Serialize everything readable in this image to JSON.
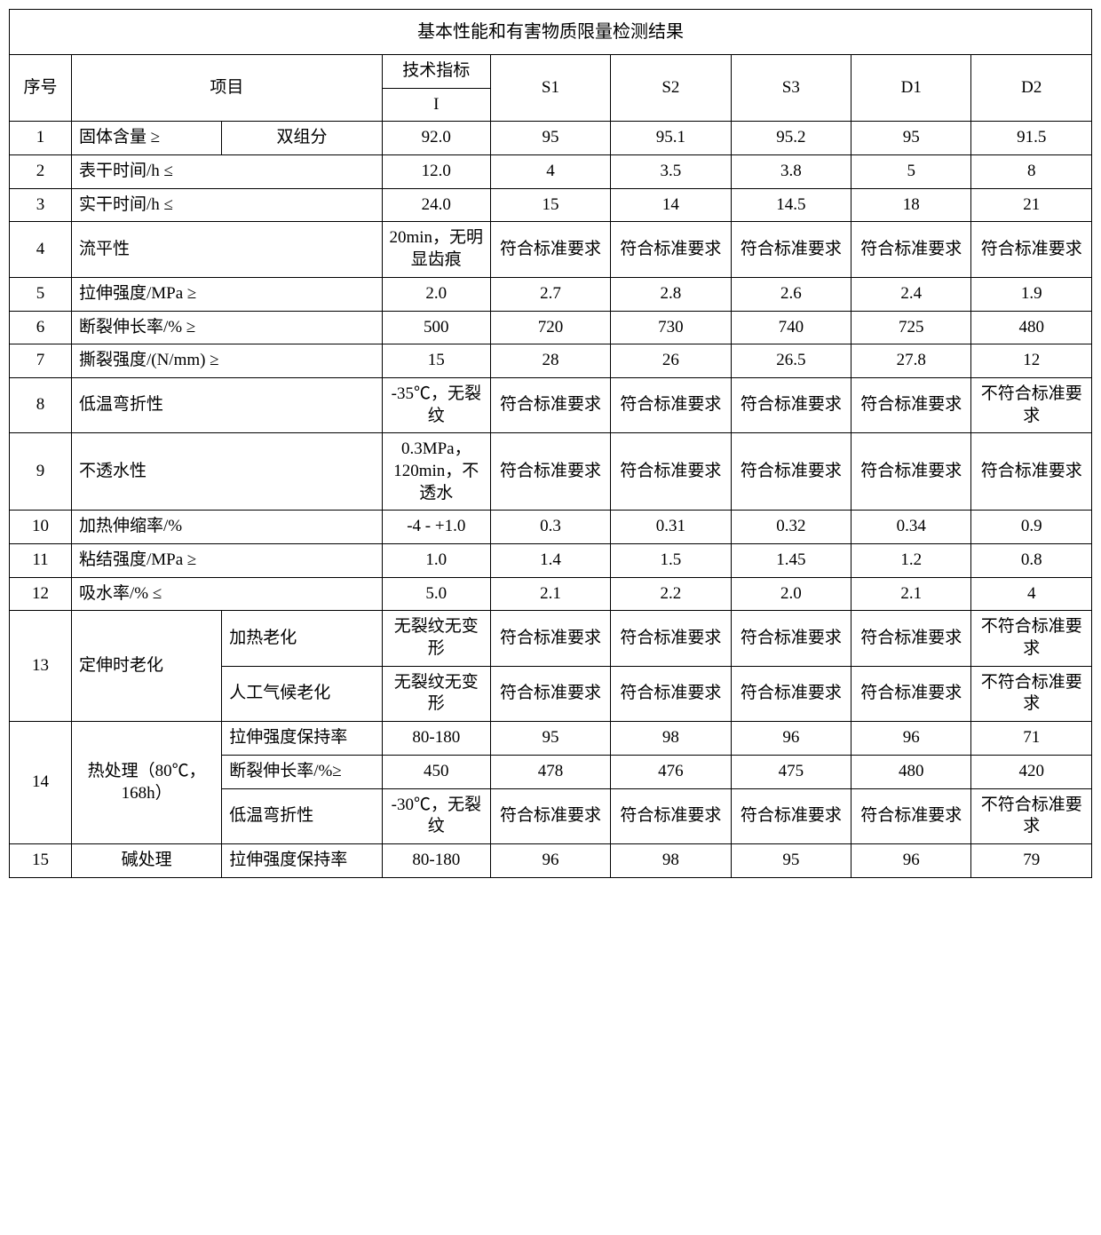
{
  "title": "基本性能和有害物质限量检测结果",
  "header": {
    "seq": "序号",
    "item": "项目",
    "spec": "技术指标",
    "spec_sub": "I",
    "s1": "S1",
    "s2": "S2",
    "s3": "S3",
    "d1": "D1",
    "d2": "D2"
  },
  "rows": [
    {
      "seq": "1",
      "item_a": "固体含量  ≥",
      "item_b": "双组分",
      "spec": "92.0",
      "s1": "95",
      "s2": "95.1",
      "s3": "95.2",
      "d1": "95",
      "d2": "91.5"
    },
    {
      "seq": "2",
      "item": "表干时间/h   ≤",
      "spec": "12.0",
      "s1": "4",
      "s2": "3.5",
      "s3": "3.8",
      "d1": "5",
      "d2": "8"
    },
    {
      "seq": "3",
      "item": "实干时间/h   ≤",
      "spec": "24.0",
      "s1": "15",
      "s2": "14",
      "s3": "14.5",
      "d1": "18",
      "d2": "21"
    },
    {
      "seq": "4",
      "item": "流平性",
      "spec": "20min，无明显齿痕",
      "s1": "符合标准要求",
      "s2": "符合标准要求",
      "s3": "符合标准要求",
      "d1": "符合标准要求",
      "d2": "符合标准要求"
    },
    {
      "seq": "5",
      "item": "拉伸强度/MPa    ≥",
      "spec": "2.0",
      "s1": "2.7",
      "s2": "2.8",
      "s3": "2.6",
      "d1": "2.4",
      "d2": "1.9"
    },
    {
      "seq": "6",
      "item": "断裂伸长率/%    ≥",
      "spec": "500",
      "s1": "720",
      "s2": "730",
      "s3": "740",
      "d1": "725",
      "d2": "480"
    },
    {
      "seq": "7",
      "item": "撕裂强度/(N/mm)   ≥",
      "spec": "15",
      "s1": "28",
      "s2": "26",
      "s3": "26.5",
      "d1": "27.8",
      "d2": "12"
    },
    {
      "seq": "8",
      "item": "低温弯折性",
      "spec": "-35℃，无裂纹",
      "s1": "符合标准要求",
      "s2": "符合标准要求",
      "s3": "符合标准要求",
      "d1": "符合标准要求",
      "d2": "不符合标准要求"
    },
    {
      "seq": "9",
      "item": "不透水性",
      "spec": "0.3MPa，120min，不透水",
      "s1": "符合标准要求",
      "s2": "符合标准要求",
      "s3": "符合标准要求",
      "d1": "符合标准要求",
      "d2": "符合标准要求"
    },
    {
      "seq": "10",
      "item": "加热伸缩率/%",
      "spec": "-4 - +1.0",
      "s1": "0.3",
      "s2": "0.31",
      "s3": "0.32",
      "d1": "0.34",
      "d2": "0.9"
    },
    {
      "seq": "11",
      "item": "粘结强度/MPa     ≥",
      "spec": "1.0",
      "s1": "1.4",
      "s2": "1.5",
      "s3": "1.45",
      "d1": "1.2",
      "d2": "0.8"
    },
    {
      "seq": "12",
      "item": "吸水率/%        ≤",
      "spec": "5.0",
      "s1": "2.1",
      "s2": "2.2",
      "s3": "2.0",
      "d1": "2.1",
      "d2": "4"
    }
  ],
  "row13": {
    "seq": "13",
    "group": "定伸时老化",
    "sub": [
      {
        "name": "加热老化",
        "spec": "无裂纹无变形",
        "s1": "符合标准要求",
        "s2": "符合标准要求",
        "s3": "符合标准要求",
        "d1": "符合标准要求",
        "d2": "不符合标准要求"
      },
      {
        "name": "人工气候老化",
        "spec": "无裂纹无变形",
        "s1": "符合标准要求",
        "s2": "符合标准要求",
        "s3": "符合标准要求",
        "d1": "符合标准要求",
        "d2": "不符合标准要求"
      }
    ]
  },
  "row14": {
    "seq": "14",
    "group": "热处理（80℃，168h）",
    "sub": [
      {
        "name": "拉伸强度保持率",
        "spec": "80-180",
        "s1": "95",
        "s2": "98",
        "s3": "96",
        "d1": "96",
        "d2": "71"
      },
      {
        "name": "断裂伸长率/%≥",
        "spec": "450",
        "s1": "478",
        "s2": "476",
        "s3": "475",
        "d1": "480",
        "d2": "420"
      },
      {
        "name": "低温弯折性",
        "spec": "-30℃，无裂纹",
        "s1": "符合标准要求",
        "s2": "符合标准要求",
        "s3": "符合标准要求",
        "d1": "符合标准要求",
        "d2": "不符合标准要求"
      }
    ]
  },
  "row15": {
    "seq": "15",
    "group": "碱处理",
    "sub": {
      "name": "拉伸强度保持率",
      "spec": "80-180",
      "s1": "96",
      "s2": "98",
      "s3": "95",
      "d1": "96",
      "d2": "79"
    }
  }
}
